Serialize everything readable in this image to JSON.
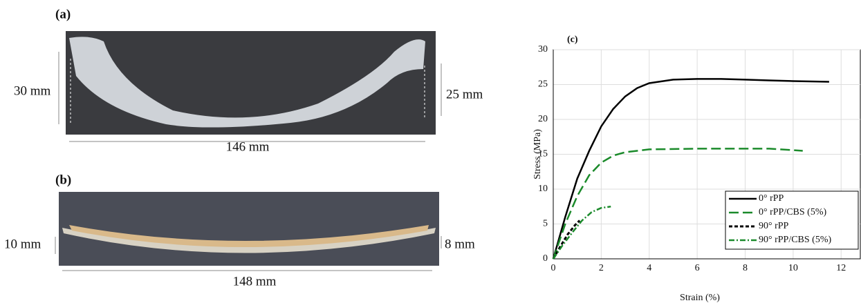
{
  "panel_a": {
    "label": "(a)",
    "height_left": "30 mm",
    "height_right": "25 mm",
    "length": "146 mm"
  },
  "panel_b": {
    "label": "(b)",
    "height_left": "10 mm",
    "height_right": "8 mm",
    "length": "148 mm"
  },
  "chart_data": {
    "type": "line",
    "title": "(c)",
    "x_label": "Strain (%)",
    "y_label": "Stress (MPa)",
    "xlim": [
      0,
      12.8
    ],
    "ylim": [
      0,
      30
    ],
    "xticks": [
      0,
      2,
      4,
      6,
      8,
      10,
      12
    ],
    "yticks": [
      0,
      5,
      10,
      15,
      20,
      25,
      30
    ],
    "grid": true,
    "legend": "lower right",
    "series": [
      {
        "name": "0° rPP",
        "color": "#000000",
        "dash": "solid",
        "x": [
          0,
          0.5,
          1,
          1.5,
          2,
          2.5,
          3,
          3.5,
          4,
          5,
          6,
          7,
          8,
          9,
          10,
          11.5
        ],
        "values": [
          0,
          6,
          11.5,
          15.5,
          19,
          21.5,
          23.3,
          24.5,
          25.2,
          25.7,
          25.8,
          25.8,
          25.7,
          25.6,
          25.5,
          25.4
        ]
      },
      {
        "name": "0° rPP/CBS (5%)",
        "color": "#1a8a2a",
        "dash": "dashed",
        "x": [
          0,
          0.5,
          1,
          1.5,
          2,
          2.5,
          3,
          4,
          6,
          8,
          9,
          10.4
        ],
        "values": [
          0,
          5,
          9,
          12,
          13.8,
          14.8,
          15.3,
          15.7,
          15.8,
          15.8,
          15.8,
          15.5
        ]
      },
      {
        "name": "90° rPP",
        "color": "#000000",
        "dash": "dotted-dash",
        "x": [
          0,
          0.3,
          0.6,
          0.9,
          1.1
        ],
        "values": [
          0,
          1.8,
          3.5,
          4.8,
          5.5
        ]
      },
      {
        "name": "90° rPP/CBS (5%)",
        "color": "#1a8a2a",
        "dash": "dashdot",
        "x": [
          0,
          0.4,
          0.8,
          1.2,
          1.6,
          2,
          2.4
        ],
        "values": [
          0,
          2,
          3.8,
          5.5,
          6.7,
          7.3,
          7.5
        ]
      }
    ]
  }
}
